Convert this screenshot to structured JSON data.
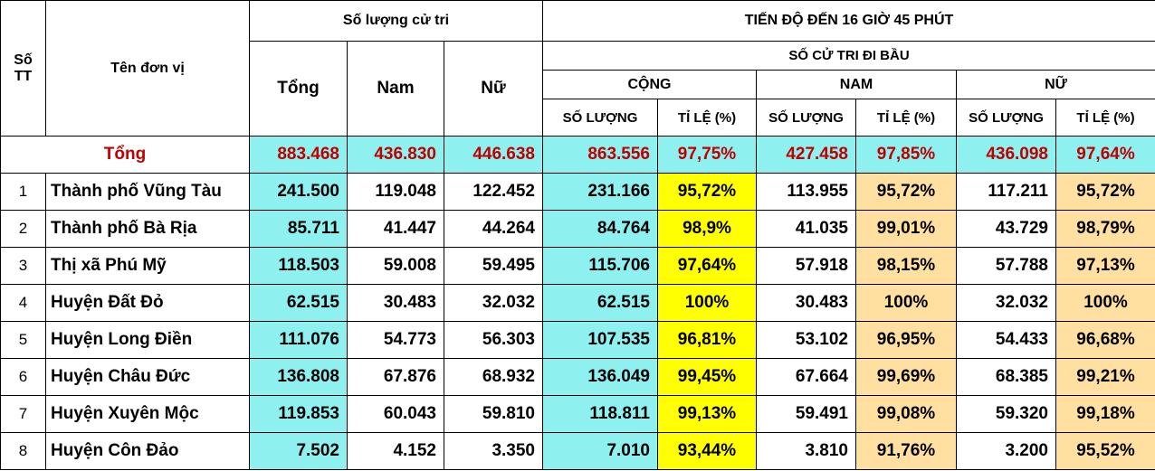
{
  "header": {
    "stt": "Số TT",
    "stt_line1": "Số",
    "stt_line2": "TT",
    "unit_name": "Tên đơn vị",
    "voter_count": "Số lượng cử tri",
    "total": "Tổng",
    "male": "Nam",
    "female": "Nữ",
    "progress": "TIẾN ĐỘ ĐẾN 16 GIỜ 45 PHÚT",
    "voted": "SỐ CỬ TRI ĐI BẦU",
    "sum": "CỘNG",
    "male_caps": "NAM",
    "female_caps": "NỮ",
    "quantity": "SỐ LƯỢNG",
    "rate": "TỈ LỆ (%)"
  },
  "total_row": {
    "label": "Tổng",
    "values": [
      "883.468",
      "436.830",
      "446.638",
      "863.556",
      "97,75%",
      "427.458",
      "97,85%",
      "436.098",
      "97,64%"
    ]
  },
  "rows": [
    {
      "stt": "1",
      "name": "Thành phố Vũng Tàu",
      "values": [
        "241.500",
        "119.048",
        "122.452",
        "231.166",
        "95,72%",
        "113.955",
        "95,72%",
        "117.211",
        "95,72%"
      ]
    },
    {
      "stt": "2",
      "name": "Thành phố Bà Rịa",
      "values": [
        "85.711",
        "41.447",
        "44.264",
        "84.764",
        "98,9%",
        "41.035",
        "99,01%",
        "43.729",
        "98,79%"
      ]
    },
    {
      "stt": "3",
      "name": "Thị xã Phú Mỹ",
      "values": [
        "118.503",
        "59.008",
        "59.495",
        "115.706",
        "97,64%",
        "57.918",
        "98,15%",
        "57.788",
        "97,13%"
      ]
    },
    {
      "stt": "4",
      "name": "Huyện Đất Đỏ",
      "values": [
        "62.515",
        "30.483",
        "32.032",
        "62.515",
        "100%",
        "30.483",
        "100%",
        "32.032",
        "100%"
      ]
    },
    {
      "stt": "5",
      "name": "Huyện Long Điền",
      "values": [
        "111.076",
        "54.773",
        "56.303",
        "107.535",
        "96,81%",
        "53.102",
        "96,95%",
        "54.433",
        "96,68%"
      ]
    },
    {
      "stt": "6",
      "name": "Huyện Châu Đức",
      "values": [
        "136.808",
        "67.876",
        "68.932",
        "136.049",
        "99,45%",
        "67.664",
        "99,69%",
        "68.385",
        "99,21%"
      ]
    },
    {
      "stt": "7",
      "name": "Huyện Xuyên Mộc",
      "values": [
        "119.853",
        "60.043",
        "59.810",
        "118.811",
        "99,13%",
        "59.491",
        "99,08%",
        "59.320",
        "99,18%"
      ]
    },
    {
      "stt": "8",
      "name": "Huyện Côn Đảo",
      "values": [
        "7.502",
        "4.152",
        "3.350",
        "7.010",
        "93,44%",
        "3.810",
        "91,76%",
        "3.200",
        "95,52%"
      ]
    }
  ],
  "colors": {
    "cyan": "#8ff0f0",
    "yellow": "#ffff00",
    "tan": "#ffe0a0",
    "total_text": "#c00000"
  }
}
